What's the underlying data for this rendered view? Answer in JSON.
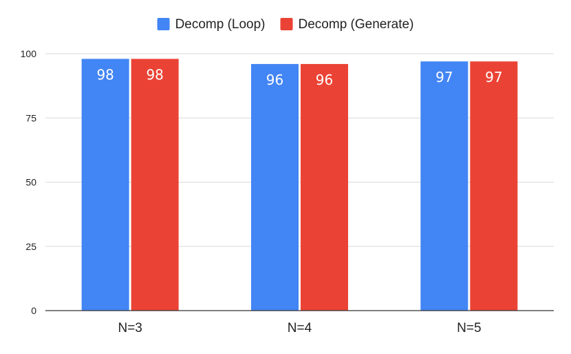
{
  "chart_data": {
    "type": "bar",
    "title": "",
    "xlabel": "",
    "ylabel": "",
    "categories": [
      "N=3",
      "N=4",
      "N=5"
    ],
    "series": [
      {
        "name": "Decomp (Loop)",
        "values": [
          98,
          96,
          97
        ],
        "color": "#4285F4"
      },
      {
        "name": "Decomp (Generate)",
        "values": [
          98,
          96,
          97
        ],
        "color": "#EA4335"
      }
    ],
    "ylim": [
      0,
      100
    ],
    "yticks": [
      0,
      25,
      50,
      75,
      100
    ],
    "grid": true,
    "legend_position": "top-center",
    "data_labels": true
  }
}
